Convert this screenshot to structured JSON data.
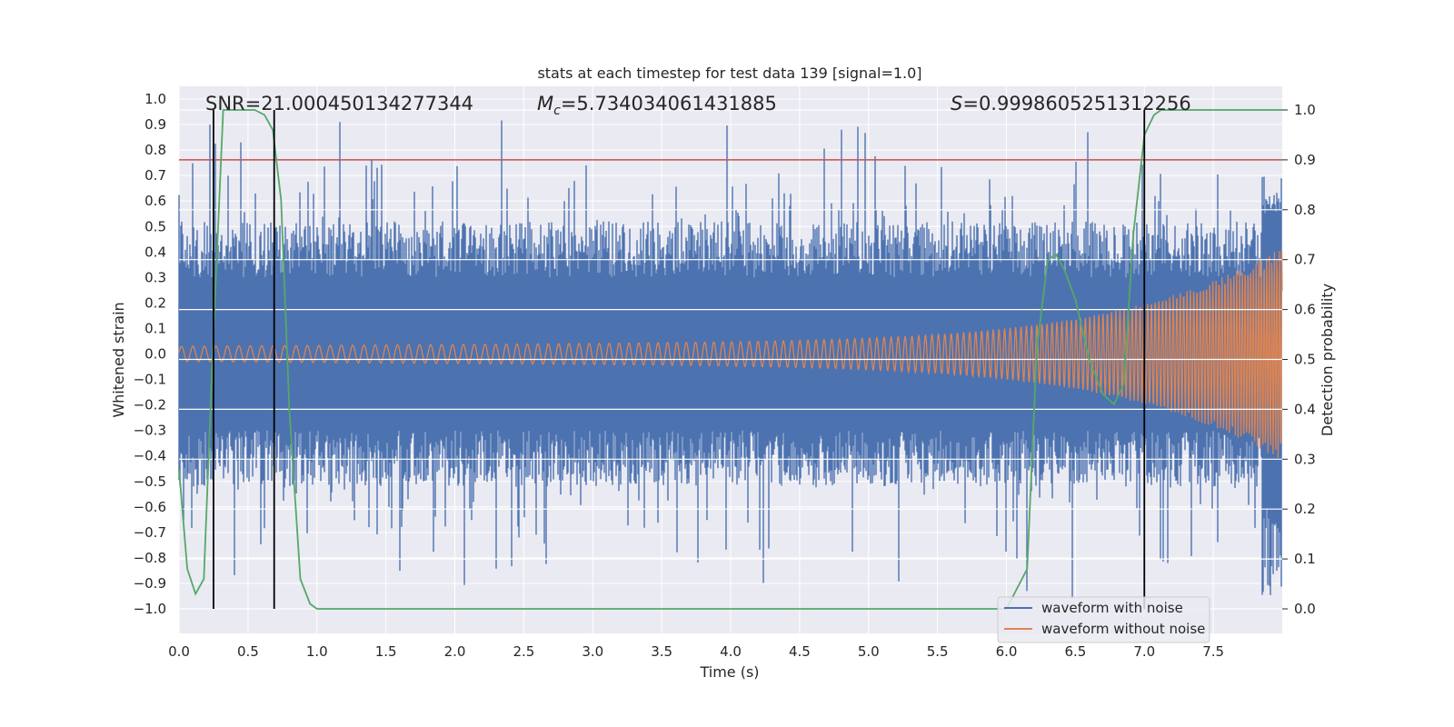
{
  "chart_data": {
    "type": "line",
    "title": "stats at each timestep for test data 139 [signal=1.0]",
    "xlabel": "Time (s)",
    "ylabel": "Whitened strain",
    "y2label": "Detection probability",
    "xlim": [
      0.0,
      8.0
    ],
    "ylim": [
      -1.1,
      1.1
    ],
    "y2lim": [
      -0.047,
      1.047
    ],
    "xticks": [
      0.0,
      0.5,
      1.0,
      1.5,
      2.0,
      2.5,
      3.0,
      3.5,
      4.0,
      4.5,
      5.0,
      5.5,
      6.0,
      6.5,
      7.0,
      7.5
    ],
    "xtick_labels": [
      "0.0",
      "0.5",
      "1.0",
      "1.5",
      "2.0",
      "2.5",
      "3.0",
      "3.5",
      "4.0",
      "4.5",
      "5.0",
      "5.5",
      "6.0",
      "6.5",
      "7.0",
      "7.5"
    ],
    "yticks": [
      -1.0,
      -0.9,
      -0.8,
      -0.7,
      -0.6,
      -0.5,
      -0.4,
      -0.3,
      -0.2,
      -0.1,
      0.0,
      0.1,
      0.2,
      0.3,
      0.4,
      0.5,
      0.6,
      0.7,
      0.8,
      0.9,
      1.0
    ],
    "ytick_labels": [
      "−1.0",
      "−0.9",
      "−0.8",
      "−0.7",
      "−0.6",
      "−0.5",
      "−0.4",
      "−0.3",
      "−0.2",
      "−0.1",
      "0.0",
      "0.1",
      "0.2",
      "0.3",
      "0.4",
      "0.5",
      "0.6",
      "0.7",
      "0.8",
      "0.9",
      "1.0"
    ],
    "y2ticks": [
      0.0,
      0.1,
      0.2,
      0.3,
      0.4,
      0.5,
      0.6,
      0.7,
      0.8,
      0.9,
      1.0
    ],
    "y2tick_labels": [
      "0.0",
      "0.1",
      "0.2",
      "0.3",
      "0.4",
      "0.5",
      "0.6",
      "0.7",
      "0.8",
      "0.9",
      "1.0"
    ],
    "annotations": {
      "snr": "SNR=21.000450134277344",
      "mc_symbol": "M",
      "mc_sub": "c",
      "mc_value": "=5.734034061431885",
      "s_symbol": "S",
      "s_value": "=0.9998605251312256"
    },
    "series": [
      {
        "name": "waveform with noise",
        "color": "#4c72b0",
        "description": "noisy whitened strain, envelope approx ±0.45 baseline with spikes to ±0.95"
      },
      {
        "name": "waveform without noise",
        "color": "#dd8452",
        "description": "chirp oscillation, amplitude growing from ~0.03 at t=0 to ~0.42 at t=8"
      },
      {
        "name": "detection probability",
        "color": "#55a868",
        "axis": "right",
        "x": [
          0.0,
          0.06,
          0.12,
          0.18,
          0.25,
          0.32,
          0.45,
          0.55,
          0.62,
          0.68,
          0.74,
          0.8,
          0.88,
          0.95,
          1.0,
          2.0,
          3.0,
          4.0,
          5.0,
          6.0,
          6.15,
          6.22,
          6.3,
          6.36,
          6.42,
          6.5,
          6.6,
          6.7,
          6.78,
          6.85,
          6.92,
          7.0,
          7.07,
          7.12,
          7.2,
          8.0
        ],
        "y": [
          0.28,
          0.08,
          0.03,
          0.06,
          0.55,
          1.0,
          1.0,
          1.0,
          0.99,
          0.96,
          0.82,
          0.4,
          0.06,
          0.01,
          0.0,
          0.0,
          0.0,
          0.0,
          0.0,
          0.0,
          0.08,
          0.52,
          0.7,
          0.71,
          0.68,
          0.62,
          0.5,
          0.43,
          0.41,
          0.45,
          0.75,
          0.95,
          0.99,
          1.0,
          1.0,
          1.0
        ]
      },
      {
        "name": "threshold",
        "color": "#c44e52",
        "axis": "right",
        "y": 0.9
      }
    ],
    "vertical_markers_s": [
      0.25,
      0.69,
      7.0
    ],
    "legend": {
      "position": "lower-right",
      "entries": [
        {
          "label": "waveform with noise",
          "color": "#4c72b0"
        },
        {
          "label": "waveform without noise",
          "color": "#dd8452"
        }
      ]
    }
  }
}
